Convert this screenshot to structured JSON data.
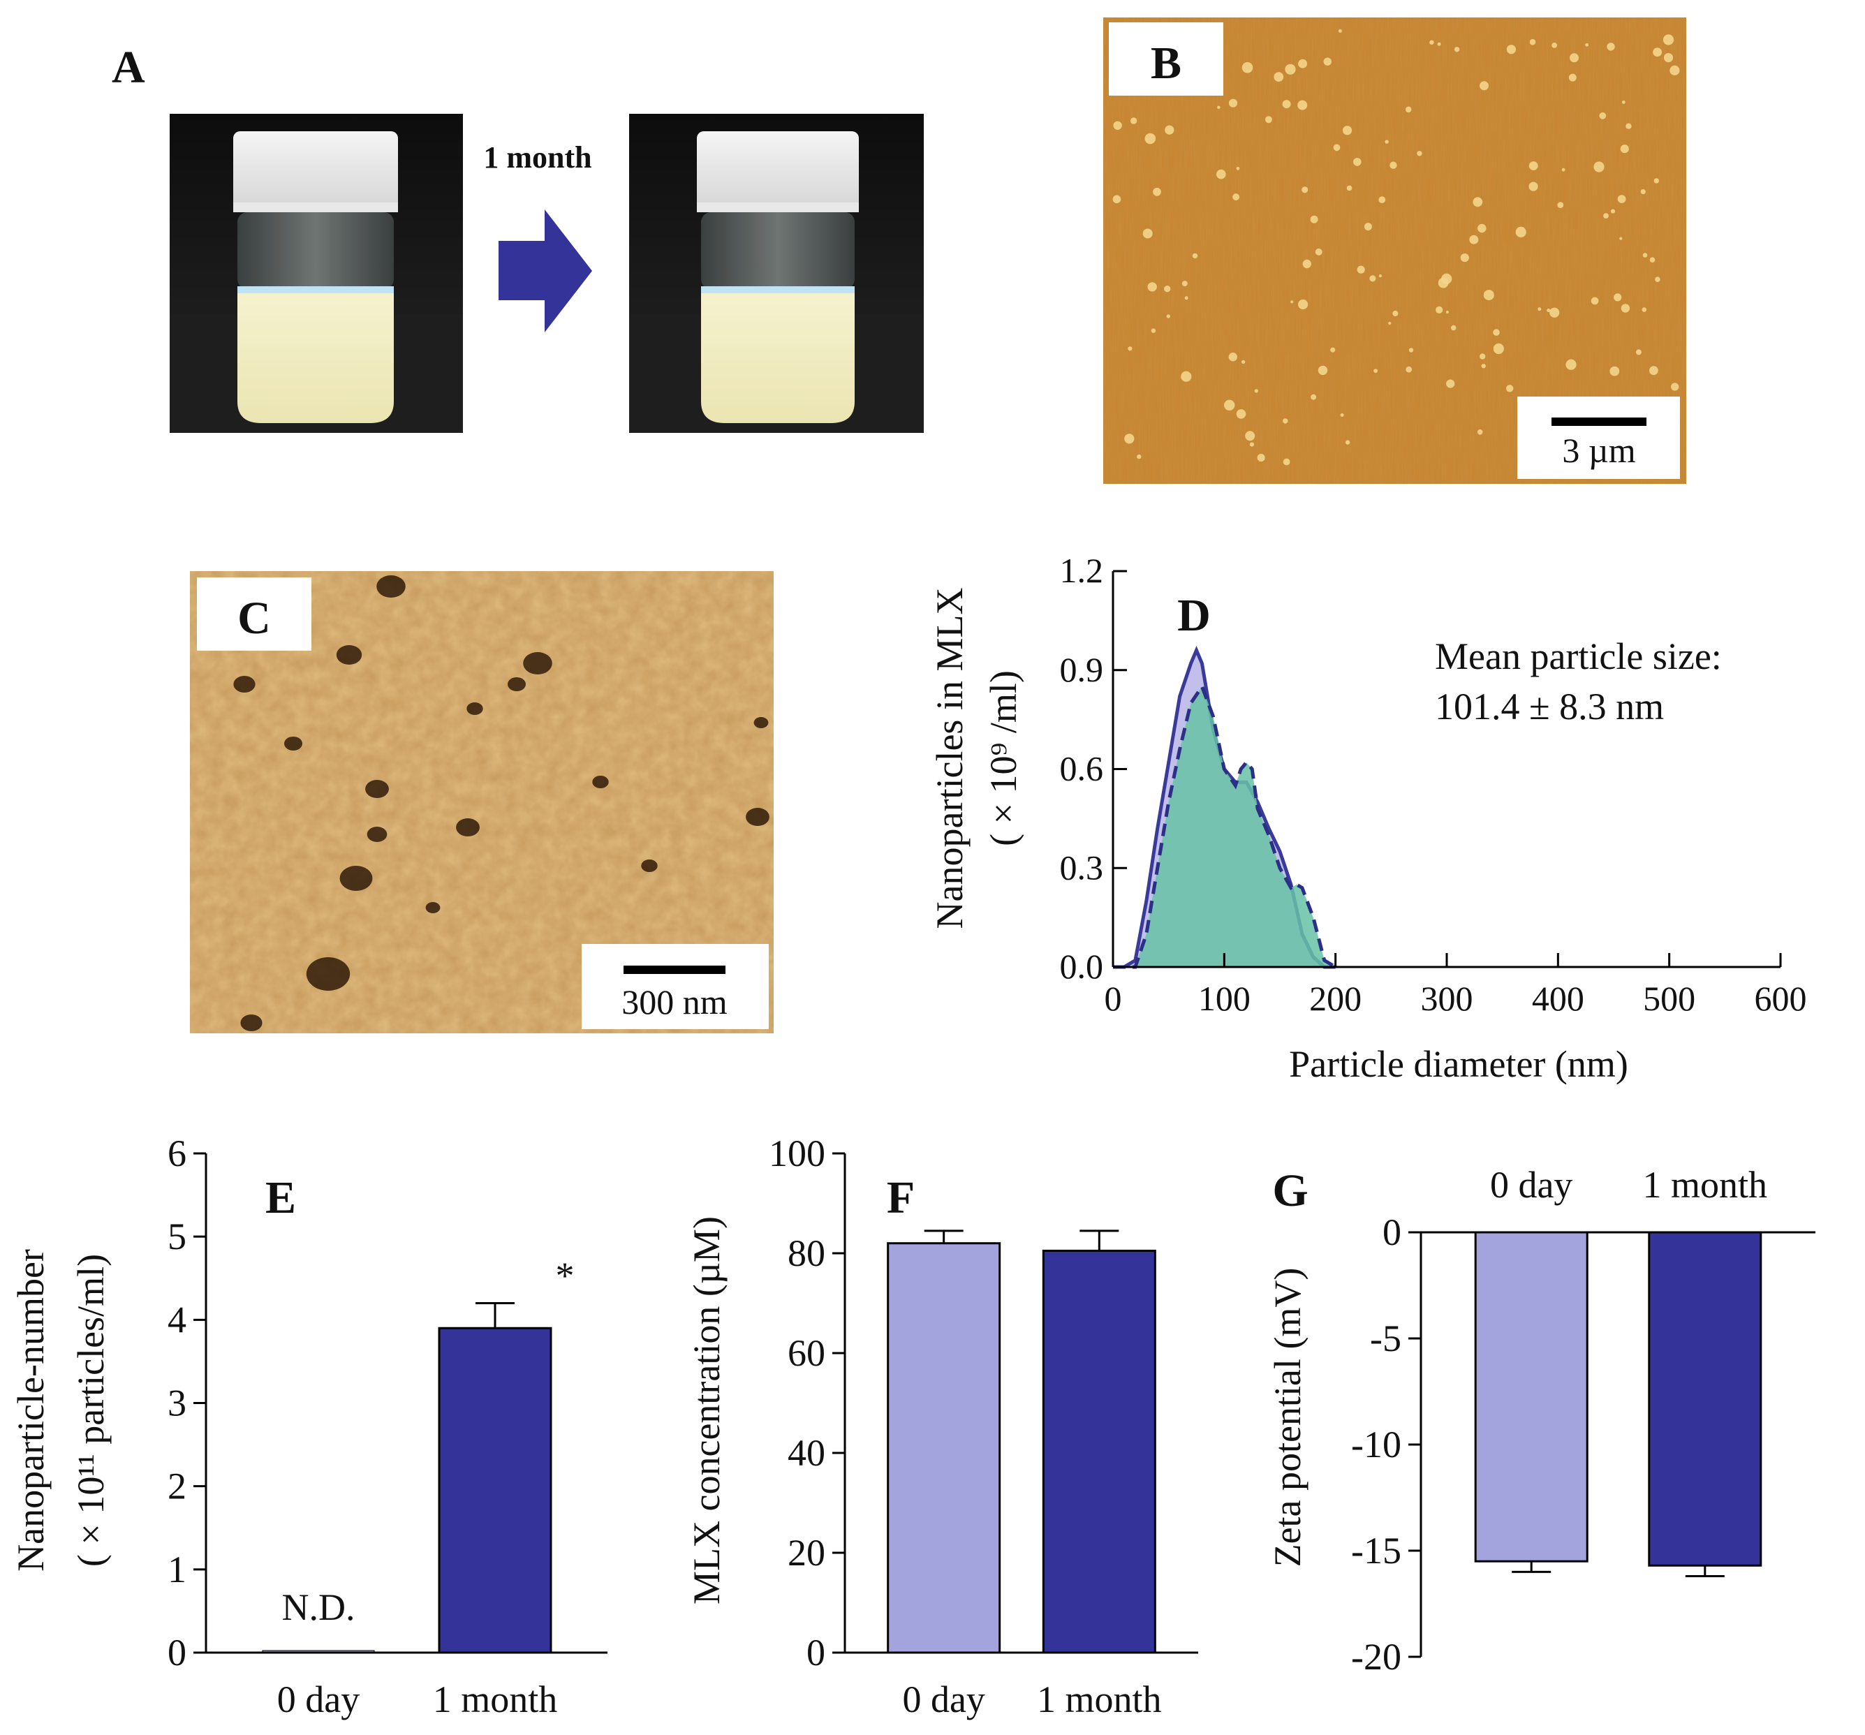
{
  "figure": {
    "panels": {
      "A": "A",
      "B": "B",
      "C": "C",
      "D": "D",
      "E": "E",
      "F": "F",
      "G": "G"
    },
    "panel_a": {
      "arrow_label": "1 month"
    },
    "panel_b": {
      "scale_bar": "3 µm"
    },
    "panel_c": {
      "scale_bar": "300 nm"
    }
  },
  "colors": {
    "light_bar": "#a3a3de",
    "dark_bar": "#333399",
    "area_a": "#b7b4e8",
    "line_a": "#3a3a9a",
    "area_b": "#66c2a5",
    "line_b": "#2b2f86",
    "afm": "#c8832e",
    "arrow": "#333399"
  },
  "chart_data": [
    {
      "panel": "D",
      "type": "area",
      "xlabel": "Particle diameter (nm)",
      "ylabel_line1": "Nanoparticles in MLX",
      "ylabel_line2": "( × 10⁹ /ml)",
      "xlim": [
        0,
        600
      ],
      "ylim": [
        0,
        1.2
      ],
      "xticks": [
        0,
        100,
        200,
        300,
        400,
        500,
        600
      ],
      "yticks": [
        "0.0",
        "0.3",
        "0.6",
        "0.9",
        "1.2"
      ],
      "annotation_line1": "Mean particle size:",
      "annotation_line2": "101.4 ± 8.3 nm",
      "series": [
        {
          "style": "solid",
          "x": [
            0,
            10,
            20,
            30,
            40,
            50,
            60,
            70,
            75,
            80,
            85,
            90,
            100,
            110,
            120,
            130,
            140,
            150,
            160,
            170,
            180,
            190,
            200
          ],
          "y": [
            0,
            0,
            0.02,
            0.2,
            0.42,
            0.62,
            0.82,
            0.92,
            0.96,
            0.92,
            0.82,
            0.72,
            0.6,
            0.56,
            0.56,
            0.5,
            0.42,
            0.35,
            0.25,
            0.1,
            0.03,
            0,
            0
          ]
        },
        {
          "style": "dashed",
          "x": [
            0,
            10,
            20,
            30,
            40,
            50,
            60,
            70,
            80,
            90,
            100,
            110,
            115,
            120,
            125,
            130,
            140,
            150,
            160,
            165,
            170,
            180,
            190,
            200
          ],
          "y": [
            0,
            0,
            0,
            0.1,
            0.3,
            0.5,
            0.66,
            0.8,
            0.85,
            0.76,
            0.6,
            0.55,
            0.6,
            0.62,
            0.6,
            0.48,
            0.4,
            0.3,
            0.24,
            0.25,
            0.24,
            0.15,
            0.02,
            0
          ]
        }
      ]
    },
    {
      "panel": "E",
      "type": "bar",
      "categories": [
        "0 day",
        "1 month"
      ],
      "values": [
        0,
        3.9
      ],
      "errors": [
        0,
        0.3
      ],
      "ylim": [
        0,
        6
      ],
      "yticks": [
        "0",
        "1",
        "2",
        "3",
        "4",
        "5",
        "6"
      ],
      "ylabel_line1": "Nanoparticle-number",
      "ylabel_line2": "( × 10¹¹ particles/ml)",
      "bar_annotations": [
        "N.D.",
        "*"
      ]
    },
    {
      "panel": "F",
      "type": "bar",
      "categories": [
        "0 day",
        "1 month"
      ],
      "values": [
        82,
        80.5
      ],
      "errors": [
        2.5,
        4
      ],
      "ylim": [
        0,
        100
      ],
      "yticks": [
        "0",
        "20",
        "40",
        "60",
        "80",
        "100"
      ],
      "ylabel": "MLX concentration (µM)"
    },
    {
      "panel": "G",
      "type": "bar",
      "categories": [
        "0 day",
        "1 month"
      ],
      "values": [
        -15.5,
        -15.7
      ],
      "errors": [
        0.5,
        0.5
      ],
      "ylim": [
        -20,
        0
      ],
      "yticks": [
        "0",
        "-5",
        "-10",
        "-15",
        "-20"
      ],
      "ylabel": "Zeta potential (mV)"
    }
  ]
}
